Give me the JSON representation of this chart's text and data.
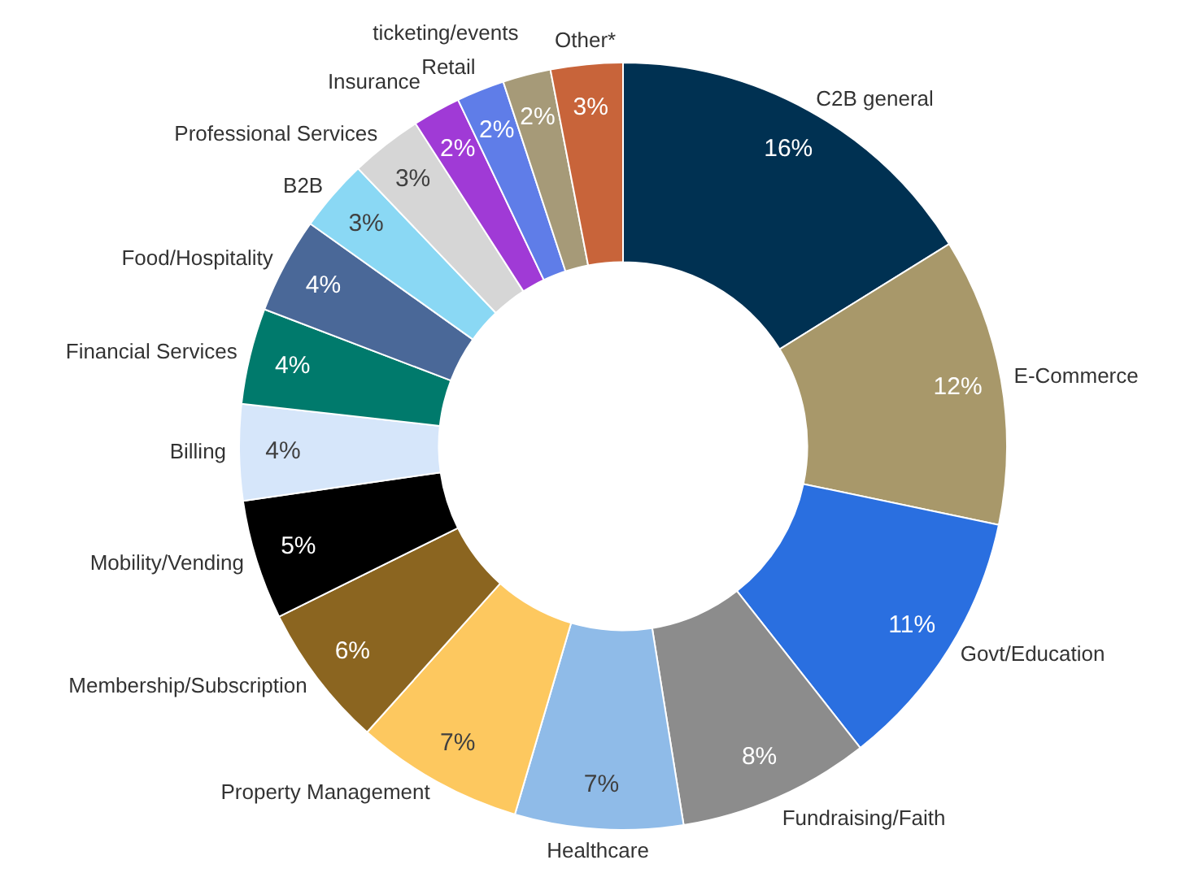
{
  "chart_data": {
    "type": "donut",
    "categories": [
      "C2B general",
      "E-Commerce",
      "Govt/Education",
      "Fundraising/Faith",
      "Healthcare",
      "Property Management",
      "Membership/Subscription",
      "Mobility/Vending",
      "Billing",
      "Financial Services",
      "Food/Hospitality",
      "B2B",
      "Professional Services",
      "Insurance",
      "Retail",
      "ticketing/events",
      "Other*"
    ],
    "values": [
      16,
      12,
      11,
      8,
      7,
      7,
      6,
      5,
      4,
      4,
      4,
      3,
      3,
      2,
      2,
      2,
      3
    ],
    "value_labels": [
      "16%",
      "12%",
      "11%",
      "8%",
      "7%",
      "7%",
      "6%",
      "5%",
      "4%",
      "4%",
      "4%",
      "3%",
      "3%",
      "2%",
      "2%",
      "2%",
      "3%"
    ],
    "colors": [
      "#003152",
      "#a8986a",
      "#2a6fe0",
      "#8c8c8c",
      "#8fbbe8",
      "#fdc85f",
      "#8b6520",
      "#000000",
      "#d6e6fa",
      "#007a6c",
      "#4a6898",
      "#8ad8f4",
      "#d6d6d6",
      "#a03ad6",
      "#5f7de8",
      "#a69a78",
      "#c8643a"
    ],
    "legend": false
  }
}
